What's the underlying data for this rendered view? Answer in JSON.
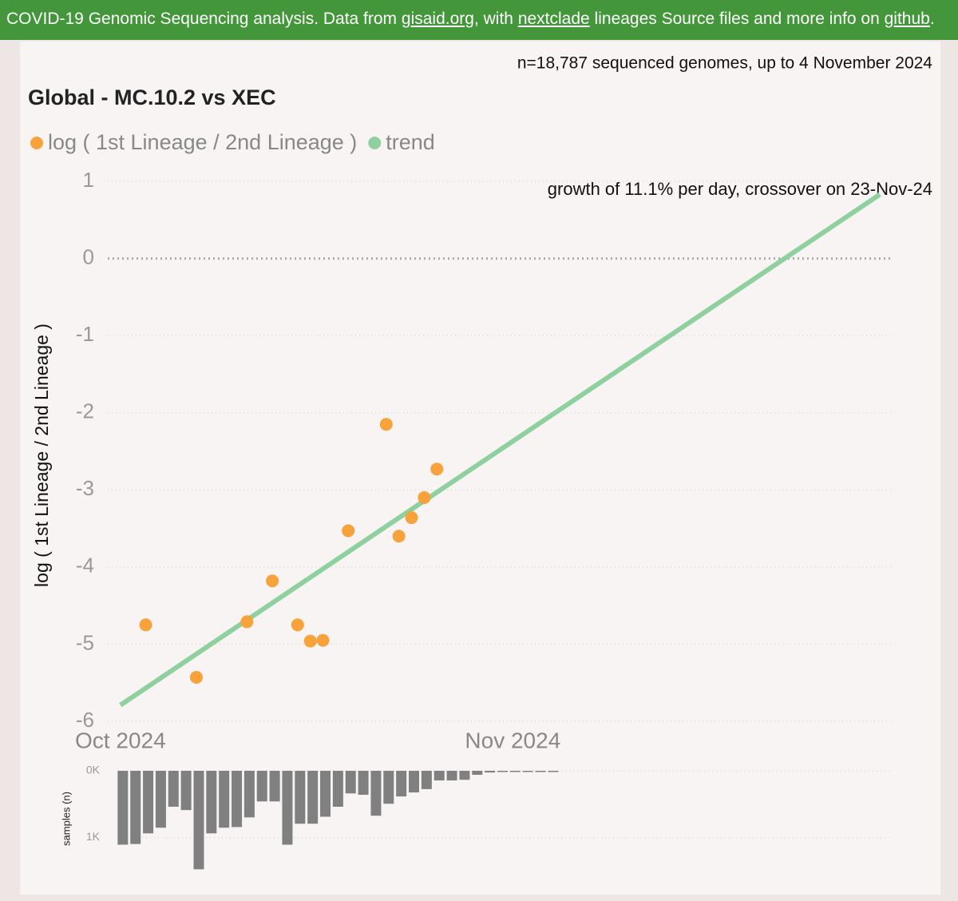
{
  "header": {
    "segments": [
      {
        "text": "COVID-19 Genomic Sequencing analysis. Data from ",
        "link": false
      },
      {
        "text": "gisaid.org",
        "link": true
      },
      {
        "text": ", with ",
        "link": false
      },
      {
        "text": "nextclade",
        "link": true
      },
      {
        "text": " lineages Source files and more info on ",
        "link": false
      },
      {
        "text": "github",
        "link": true
      },
      {
        "text": ".",
        "link": false
      }
    ]
  },
  "chart_data": [
    {
      "type": "scatter",
      "title": "Global - MC.10.2 vs XEC",
      "subtitle": "n=18,787 sequenced genomes, up to 4 November 2024",
      "annotation": "growth of 11.1% per day, crossover on 23-Nov-24",
      "ylabel": "log ( 1st Lineage / 2nd Lineage )",
      "xlim": [
        0,
        62
      ],
      "xticks": [
        {
          "value": 1,
          "label": "Oct 2024"
        },
        {
          "value": 32,
          "label": "Nov 2024"
        }
      ],
      "ylim": [
        -6,
        1
      ],
      "yticks": [
        -6,
        -5,
        -4,
        -3,
        -2,
        -1,
        0,
        1
      ],
      "grid": true,
      "zero_line": true,
      "series": [
        {
          "name": "log ( 1st Lineage / 2nd Lineage )",
          "color": "#f7a23b",
          "style": "points",
          "x": [
            3,
            7,
            11,
            13,
            15,
            16,
            17,
            19,
            22,
            23,
            24,
            25,
            26
          ],
          "values": [
            -4.75,
            -5.43,
            -4.71,
            -4.18,
            -4.75,
            -4.96,
            -4.95,
            -3.53,
            -2.15,
            -3.6,
            -3.36,
            -3.1,
            -2.73
          ]
        },
        {
          "name": "trend",
          "color": "#8fd19e",
          "style": "line",
          "x": [
            1,
            61
          ],
          "values": [
            -5.79,
            0.83
          ]
        }
      ]
    },
    {
      "type": "bar",
      "ylabel": "samples (n)",
      "color": "#808080",
      "xlim": [
        0,
        62
      ],
      "ylim": [
        0,
        1500
      ],
      "y_inverted": true,
      "grid": true,
      "yticks": [
        {
          "value": 0,
          "label": "0K"
        },
        {
          "value": 1000,
          "label": "1K"
        }
      ],
      "x": [
        1,
        2,
        3,
        4,
        5,
        6,
        7,
        8,
        9,
        10,
        11,
        12,
        13,
        14,
        15,
        16,
        17,
        18,
        19,
        20,
        21,
        22,
        23,
        24,
        25,
        26,
        27,
        28,
        29,
        30,
        31,
        32,
        33,
        34,
        35
      ],
      "values": [
        1110,
        1100,
        940,
        855,
        540,
        590,
        1480,
        940,
        855,
        845,
        700,
        460,
        460,
        1110,
        795,
        795,
        690,
        540,
        340,
        360,
        675,
        495,
        385,
        325,
        275,
        145,
        145,
        135,
        60,
        25,
        10,
        5,
        5,
        5,
        5
      ]
    }
  ]
}
